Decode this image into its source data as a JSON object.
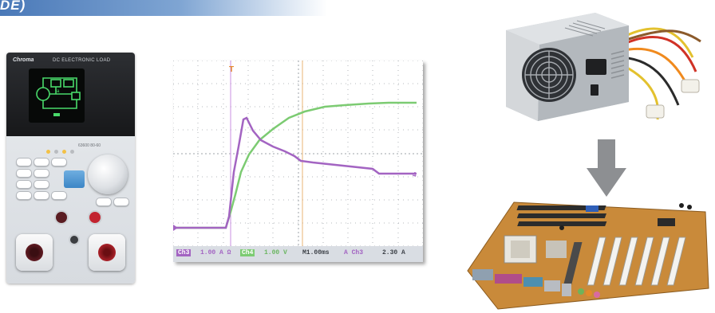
{
  "banner": {
    "text": "DE)"
  },
  "instrument": {
    "brand": "Chroma",
    "model_text": "DC ELECTRONIC LOAD",
    "model_tag": "63600 80-60"
  },
  "oscilloscope": {
    "status": {
      "ch3_label": "Ch3",
      "ch3_scale": "1.00 A Ω",
      "ch4_label": "Ch4",
      "ch4_scale": "1.00 V",
      "timebase": "M1.00ms",
      "trigger_source": "A Ch3",
      "trigger_level": "2.30 A"
    },
    "trigger_marker": "T",
    "channel_marker": "4",
    "colors": {
      "green_trace": "#7ccb72",
      "purple_trace": "#a364c2",
      "grid": "#9ea3a9",
      "background": "#ffffff"
    }
  },
  "icons": {
    "power_supply": "power-supply-unit-photo",
    "arrow": "down-arrow-icon",
    "motherboard": "motherboard-photo"
  },
  "colors": {
    "banner": "#4a79b8",
    "arrow": "#8d8f92"
  }
}
